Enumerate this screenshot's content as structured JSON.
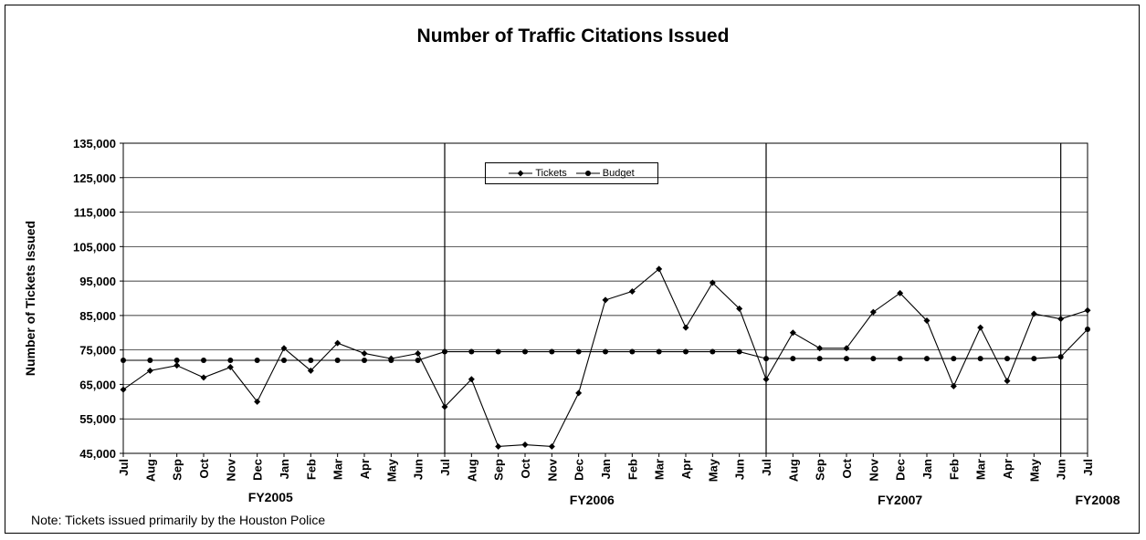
{
  "chart_data": {
    "type": "line",
    "title": "Number of Traffic Citations Issued",
    "ylabel": "Number of Tickets Issued",
    "xlabel": "",
    "ylim": [
      45000,
      135000
    ],
    "yticks": [
      45000,
      55000,
      65000,
      75000,
      85000,
      95000,
      105000,
      115000,
      125000,
      135000
    ],
    "ytick_labels": [
      "45,000",
      "55,000",
      "65,000",
      "75,000",
      "85,000",
      "95,000",
      "105,000",
      "115,000",
      "125,000",
      "135,000"
    ],
    "categories": [
      "Jul",
      "Aug",
      "Sep",
      "Oct",
      "Nov",
      "Dec",
      "Jan",
      "Feb",
      "Mar",
      "Apr",
      "May",
      "Jun",
      "Jul",
      "Aug",
      "Sep",
      "Oct",
      "Nov",
      "Dec",
      "Jan",
      "Feb",
      "Mar",
      "Apr",
      "May",
      "Jun",
      "Jul",
      "Aug",
      "Sep",
      "Oct",
      "Nov",
      "Dec",
      "Jan",
      "Feb",
      "Mar",
      "Apr",
      "May",
      "Jun",
      "Jul"
    ],
    "series": [
      {
        "name": "Tickets",
        "marker": "diamond",
        "values": [
          63500,
          69000,
          70500,
          67000,
          70000,
          60000,
          75500,
          69000,
          77000,
          74000,
          72500,
          74000,
          58500,
          66500,
          47000,
          47500,
          47000,
          62500,
          89500,
          92000,
          98500,
          81500,
          94500,
          87000,
          66500,
          80000,
          75500,
          75500,
          86000,
          91500,
          83500,
          64500,
          81500,
          66000,
          85500,
          84000,
          86500
        ]
      },
      {
        "name": "Budget",
        "marker": "circle",
        "values": [
          72000,
          72000,
          72000,
          72000,
          72000,
          72000,
          72000,
          72000,
          72000,
          72000,
          72000,
          72000,
          74500,
          74500,
          74500,
          74500,
          74500,
          74500,
          74500,
          74500,
          74500,
          74500,
          74500,
          74500,
          72500,
          72500,
          72500,
          72500,
          72500,
          72500,
          72500,
          72500,
          72500,
          72500,
          72500,
          73000,
          81000
        ]
      }
    ],
    "fiscal_years": [
      {
        "label": "FY2005",
        "start": 0,
        "end": 11
      },
      {
        "label": "FY2006",
        "start": 12,
        "end": 23
      },
      {
        "label": "FY2007",
        "start": 24,
        "end": 34
      },
      {
        "label": "FY2008",
        "start": 35,
        "end": 36
      }
    ],
    "fiscal_dividers_at": [
      12,
      24,
      35
    ],
    "grid": true,
    "legend_position": "top-center"
  },
  "note": "Note: Tickets issued primarily by the Houston Police",
  "colors": {
    "line": "#000000",
    "grid": "#000000",
    "background": "#ffffff"
  }
}
